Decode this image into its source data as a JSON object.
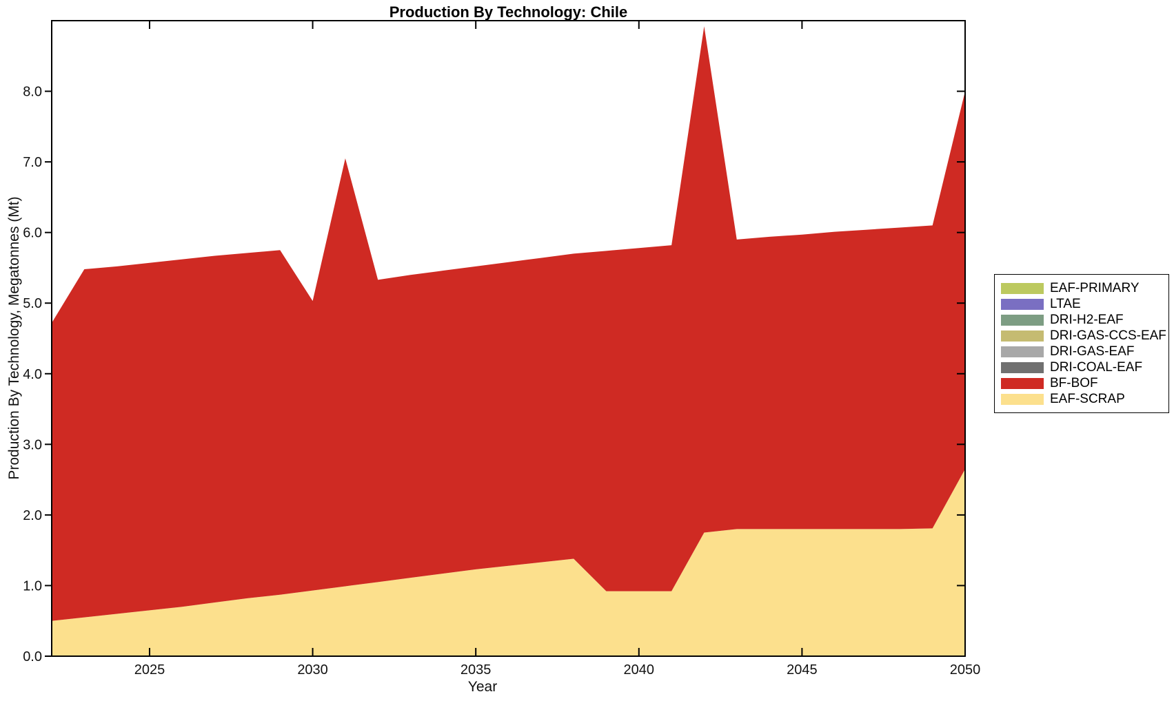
{
  "chart_data": {
    "type": "area",
    "stacked": true,
    "title": "Production By Technology: Chile",
    "xlabel": "Year",
    "ylabel": "Production By Technology, Megatonnes (Mt)",
    "xlim": [
      2022,
      2050
    ],
    "ylim": [
      0,
      9
    ],
    "grid": false,
    "legend_position": "outside-right",
    "x": [
      2022,
      2023,
      2024,
      2025,
      2026,
      2027,
      2028,
      2029,
      2030,
      2031,
      2032,
      2033,
      2034,
      2035,
      2036,
      2037,
      2038,
      2039,
      2040,
      2041,
      2042,
      2043,
      2044,
      2045,
      2046,
      2047,
      2048,
      2049,
      2050
    ],
    "series": [
      {
        "name": "EAF-SCRAP",
        "color": "#fce08d",
        "values": [
          0.5,
          0.55,
          0.6,
          0.65,
          0.7,
          0.76,
          0.82,
          0.87,
          0.93,
          0.99,
          1.05,
          1.11,
          1.17,
          1.23,
          1.28,
          1.33,
          1.38,
          0.92,
          0.92,
          0.92,
          1.75,
          1.8,
          1.8,
          1.8,
          1.8,
          1.8,
          1.8,
          1.81,
          2.65
        ]
      },
      {
        "name": "BF-BOF",
        "color": "#cf2a23",
        "values": [
          4.22,
          4.93,
          4.92,
          4.92,
          4.92,
          4.91,
          4.89,
          4.88,
          4.1,
          6.06,
          4.28,
          4.29,
          4.29,
          4.29,
          4.3,
          4.31,
          4.32,
          4.82,
          4.86,
          4.9,
          7.17,
          4.1,
          4.14,
          4.17,
          4.21,
          4.24,
          4.27,
          4.29,
          5.35
        ]
      },
      {
        "name": "DRI-COAL-EAF",
        "color": "#707070",
        "values": [
          0,
          0,
          0,
          0,
          0,
          0,
          0,
          0,
          0,
          0,
          0,
          0,
          0,
          0,
          0,
          0,
          0,
          0,
          0,
          0,
          0,
          0,
          0,
          0,
          0,
          0,
          0,
          0,
          0
        ]
      },
      {
        "name": "DRI-GAS-EAF",
        "color": "#a8a8a8",
        "values": [
          0,
          0,
          0,
          0,
          0,
          0,
          0,
          0,
          0,
          0,
          0,
          0,
          0,
          0,
          0,
          0,
          0,
          0,
          0,
          0,
          0,
          0,
          0,
          0,
          0,
          0,
          0,
          0,
          0
        ]
      },
      {
        "name": "DRI-GAS-CCS-EAF",
        "color": "#c5bb71",
        "values": [
          0,
          0,
          0,
          0,
          0,
          0,
          0,
          0,
          0,
          0,
          0,
          0,
          0,
          0,
          0,
          0,
          0,
          0,
          0,
          0,
          0,
          0,
          0,
          0,
          0,
          0,
          0,
          0,
          0
        ]
      },
      {
        "name": "DRI-H2-EAF",
        "color": "#7d9d83",
        "values": [
          0,
          0,
          0,
          0,
          0,
          0,
          0,
          0,
          0,
          0,
          0,
          0,
          0,
          0,
          0,
          0,
          0,
          0,
          0,
          0,
          0,
          0,
          0,
          0,
          0,
          0,
          0,
          0,
          0
        ]
      },
      {
        "name": "LTAE",
        "color": "#7a6fc2",
        "values": [
          0,
          0,
          0,
          0,
          0,
          0,
          0,
          0,
          0,
          0,
          0,
          0,
          0,
          0,
          0,
          0,
          0,
          0,
          0,
          0,
          0,
          0,
          0,
          0,
          0,
          0,
          0,
          0,
          0
        ]
      },
      {
        "name": "EAF-PRIMARY",
        "color": "#bcc95f",
        "values": [
          0,
          0,
          0,
          0,
          0,
          0,
          0,
          0,
          0,
          0,
          0,
          0,
          0,
          0,
          0,
          0,
          0,
          0,
          0,
          0,
          0,
          0,
          0,
          0,
          0,
          0,
          0,
          0,
          0
        ]
      }
    ]
  },
  "axes": {
    "x_ticks": [
      2025,
      2030,
      2035,
      2040,
      2045,
      2050
    ],
    "y_tick_labels": [
      "0.0",
      "1.0",
      "2.0",
      "3.0",
      "4.0",
      "5.0",
      "6.0",
      "7.0",
      "8.0"
    ],
    "axis_color": "#000000",
    "tick_label_color": "#111111"
  },
  "legend": {
    "items": [
      {
        "label": "EAF-PRIMARY",
        "color": "#bcc95f"
      },
      {
        "label": "LTAE",
        "color": "#7a6fc2"
      },
      {
        "label": "DRI-H2-EAF",
        "color": "#7d9d83"
      },
      {
        "label": "DRI-GAS-CCS-EAF",
        "color": "#c5bb71"
      },
      {
        "label": "DRI-GAS-EAF",
        "color": "#a8a8a8"
      },
      {
        "label": "DRI-COAL-EAF",
        "color": "#707070"
      },
      {
        "label": "BF-BOF",
        "color": "#cf2a23"
      },
      {
        "label": "EAF-SCRAP",
        "color": "#fce08d"
      }
    ]
  }
}
